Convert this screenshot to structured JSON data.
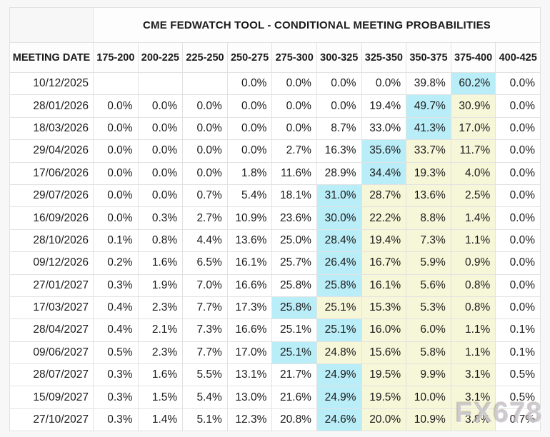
{
  "watermark": "FX678",
  "colors": {
    "highlight_max": "#b9edf7",
    "highlight_tail": "#f6f6d9",
    "border": "#e2e2e2",
    "page_bg": "#f7f7f7"
  },
  "chart_data": {
    "type": "table",
    "title": "CME FEDWATCH TOOL - CONDITIONAL MEETING PROBABILITIES",
    "columns": [
      "MEETING DATE",
      "175-200",
      "200-225",
      "225-250",
      "250-275",
      "275-300",
      "300-325",
      "325-350",
      "350-375",
      "375-400",
      "400-425"
    ],
    "highlight_legend": {
      "1": "cyan (highest probability in row)",
      "2": "yellow (right tail of distribution)"
    },
    "rows": [
      {
        "date": "10/12/2025",
        "values": [
          "",
          "",
          "",
          "0.0%",
          "0.0%",
          "0.0%",
          "0.0%",
          "39.8%",
          "60.2%",
          "0.0%"
        ],
        "highlight": [
          0,
          0,
          0,
          0,
          0,
          0,
          0,
          0,
          1,
          0
        ]
      },
      {
        "date": "28/01/2026",
        "values": [
          "0.0%",
          "0.0%",
          "0.0%",
          "0.0%",
          "0.0%",
          "0.0%",
          "19.4%",
          "49.7%",
          "30.9%",
          "0.0%"
        ],
        "highlight": [
          0,
          0,
          0,
          0,
          0,
          0,
          0,
          1,
          2,
          0
        ]
      },
      {
        "date": "18/03/2026",
        "values": [
          "0.0%",
          "0.0%",
          "0.0%",
          "0.0%",
          "0.0%",
          "8.7%",
          "33.0%",
          "41.3%",
          "17.0%",
          "0.0%"
        ],
        "highlight": [
          0,
          0,
          0,
          0,
          0,
          0,
          0,
          1,
          2,
          0
        ]
      },
      {
        "date": "29/04/2026",
        "values": [
          "0.0%",
          "0.0%",
          "0.0%",
          "0.0%",
          "2.7%",
          "16.3%",
          "35.6%",
          "33.7%",
          "11.7%",
          "0.0%"
        ],
        "highlight": [
          0,
          0,
          0,
          0,
          0,
          0,
          1,
          2,
          2,
          0
        ]
      },
      {
        "date": "17/06/2026",
        "values": [
          "0.0%",
          "0.0%",
          "0.0%",
          "1.8%",
          "11.6%",
          "28.9%",
          "34.4%",
          "19.3%",
          "4.0%",
          "0.0%"
        ],
        "highlight": [
          0,
          0,
          0,
          0,
          0,
          0,
          1,
          2,
          2,
          0
        ]
      },
      {
        "date": "29/07/2026",
        "values": [
          "0.0%",
          "0.0%",
          "0.7%",
          "5.4%",
          "18.1%",
          "31.0%",
          "28.7%",
          "13.6%",
          "2.5%",
          "0.0%"
        ],
        "highlight": [
          0,
          0,
          0,
          0,
          0,
          1,
          2,
          2,
          2,
          0
        ]
      },
      {
        "date": "16/09/2026",
        "values": [
          "0.0%",
          "0.3%",
          "2.7%",
          "10.9%",
          "23.6%",
          "30.0%",
          "22.2%",
          "8.8%",
          "1.4%",
          "0.0%"
        ],
        "highlight": [
          0,
          0,
          0,
          0,
          0,
          1,
          2,
          2,
          2,
          0
        ]
      },
      {
        "date": "28/10/2026",
        "values": [
          "0.1%",
          "0.8%",
          "4.4%",
          "13.6%",
          "25.0%",
          "28.4%",
          "19.4%",
          "7.3%",
          "1.1%",
          "0.0%"
        ],
        "highlight": [
          0,
          0,
          0,
          0,
          0,
          1,
          2,
          2,
          2,
          0
        ]
      },
      {
        "date": "09/12/2026",
        "values": [
          "0.2%",
          "1.6%",
          "6.5%",
          "16.1%",
          "25.7%",
          "26.4%",
          "16.7%",
          "5.9%",
          "0.9%",
          "0.0%"
        ],
        "highlight": [
          0,
          0,
          0,
          0,
          0,
          1,
          2,
          2,
          2,
          0
        ]
      },
      {
        "date": "27/01/2027",
        "values": [
          "0.3%",
          "1.9%",
          "7.0%",
          "16.6%",
          "25.8%",
          "25.8%",
          "16.1%",
          "5.6%",
          "0.8%",
          "0.0%"
        ],
        "highlight": [
          0,
          0,
          0,
          0,
          0,
          1,
          2,
          2,
          2,
          0
        ]
      },
      {
        "date": "17/03/2027",
        "values": [
          "0.4%",
          "2.3%",
          "7.7%",
          "17.3%",
          "25.8%",
          "25.1%",
          "15.3%",
          "5.3%",
          "0.8%",
          "0.0%"
        ],
        "highlight": [
          0,
          0,
          0,
          0,
          1,
          2,
          2,
          2,
          2,
          0
        ]
      },
      {
        "date": "28/04/2027",
        "values": [
          "0.4%",
          "2.1%",
          "7.3%",
          "16.6%",
          "25.1%",
          "25.1%",
          "16.0%",
          "6.0%",
          "1.1%",
          "0.1%"
        ],
        "highlight": [
          0,
          0,
          0,
          0,
          0,
          1,
          2,
          2,
          2,
          0
        ]
      },
      {
        "date": "09/06/2027",
        "values": [
          "0.5%",
          "2.3%",
          "7.7%",
          "17.0%",
          "25.1%",
          "24.8%",
          "15.6%",
          "5.8%",
          "1.1%",
          "0.1%"
        ],
        "highlight": [
          0,
          0,
          0,
          0,
          1,
          2,
          2,
          2,
          2,
          0
        ]
      },
      {
        "date": "28/07/2027",
        "values": [
          "0.3%",
          "1.6%",
          "5.5%",
          "13.1%",
          "21.7%",
          "24.9%",
          "19.5%",
          "9.9%",
          "3.1%",
          "0.5%"
        ],
        "highlight": [
          0,
          0,
          0,
          0,
          0,
          1,
          2,
          2,
          2,
          0
        ]
      },
      {
        "date": "15/09/2027",
        "values": [
          "0.3%",
          "1.5%",
          "5.4%",
          "13.0%",
          "21.6%",
          "24.9%",
          "19.5%",
          "10.0%",
          "3.1%",
          "0.5%"
        ],
        "highlight": [
          0,
          0,
          0,
          0,
          0,
          1,
          2,
          2,
          2,
          0
        ]
      },
      {
        "date": "27/10/2027",
        "values": [
          "0.3%",
          "1.4%",
          "5.1%",
          "12.3%",
          "20.8%",
          "24.6%",
          "20.0%",
          "10.9%",
          "3.8%",
          "0.7%"
        ],
        "highlight": [
          0,
          0,
          0,
          0,
          0,
          1,
          2,
          2,
          2,
          0
        ]
      }
    ]
  }
}
